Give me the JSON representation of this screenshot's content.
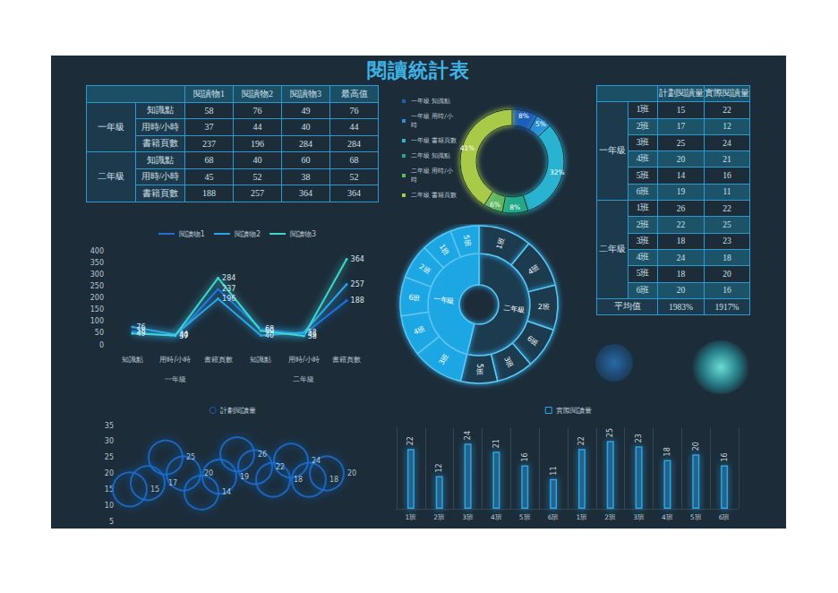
{
  "title": "閱讀統計表",
  "reading_table": {
    "header": [
      "閱讀物1",
      "閱讀物2",
      "閱讀物3",
      "最高值"
    ],
    "groups": [
      {
        "label": "一年級",
        "rows": [
          {
            "label": "知識點",
            "values": [
              58,
              76,
              49,
              76
            ]
          },
          {
            "label": "用時/小時",
            "values": [
              37,
              44,
              40,
              44
            ]
          },
          {
            "label": "書籍頁數",
            "values": [
              237,
              196,
              284,
              284
            ]
          }
        ]
      },
      {
        "label": "二年級",
        "rows": [
          {
            "label": "知識點",
            "values": [
              68,
              40,
              60,
              68
            ]
          },
          {
            "label": "用時/小時",
            "values": [
              45,
              52,
              38,
              52
            ]
          },
          {
            "label": "書籍頁數",
            "values": [
              188,
              257,
              364,
              364
            ]
          }
        ]
      }
    ]
  },
  "class_table": {
    "header": [
      "計劃閱讀量",
      "實際閱讀量"
    ],
    "groups": [
      {
        "label": "一年級",
        "rows": [
          {
            "label": "1班",
            "values": [
              15,
              22
            ]
          },
          {
            "label": "2班",
            "values": [
              17,
              12
            ]
          },
          {
            "label": "3班",
            "values": [
              25,
              24
            ]
          },
          {
            "label": "4班",
            "values": [
              20,
              21
            ]
          },
          {
            "label": "5班",
            "values": [
              14,
              16
            ]
          },
          {
            "label": "6班",
            "values": [
              19,
              11
            ]
          }
        ]
      },
      {
        "label": "二年級",
        "rows": [
          {
            "label": "1班",
            "values": [
              26,
              22
            ]
          },
          {
            "label": "2班",
            "values": [
              22,
              25
            ]
          },
          {
            "label": "3班",
            "values": [
              18,
              23
            ]
          },
          {
            "label": "4班",
            "values": [
              24,
              18
            ]
          },
          {
            "label": "5班",
            "values": [
              18,
              20
            ]
          },
          {
            "label": "6班",
            "values": [
              20,
              16
            ]
          }
        ]
      }
    ],
    "footer": {
      "label": "平均值",
      "values": [
        "1983%",
        "1917%"
      ]
    }
  },
  "chart_data": [
    {
      "type": "line",
      "categories": [
        "知識點",
        "用時/小時",
        "書籍頁數",
        "知識點",
        "用時/小時",
        "書籍頁數"
      ],
      "groups": [
        "一年級",
        "二年級"
      ],
      "series": [
        {
          "name": "閱讀物1",
          "color": "#1f6fd6",
          "values": [
            58,
            37,
            237,
            68,
            45,
            188
          ]
        },
        {
          "name": "閱讀物2",
          "color": "#2aa5e8",
          "values": [
            76,
            44,
            196,
            40,
            52,
            257
          ]
        },
        {
          "name": "閱讀物3",
          "color": "#3dd6d0",
          "values": [
            49,
            40,
            284,
            60,
            38,
            364
          ]
        }
      ],
      "ylim": [
        0,
        400
      ],
      "yticks": [
        0,
        50,
        100,
        150,
        200,
        250,
        300,
        350,
        400
      ],
      "grid": false,
      "data_labels": true,
      "legend": "top"
    },
    {
      "type": "pie",
      "categories": [
        "一年級 知識點",
        "一年級 用時/小時",
        "一年級 書籍頁數",
        "二年級 知識點",
        "二年級 用時/小時",
        "二年級 書籍頁數"
      ],
      "values": [
        8,
        5,
        32,
        8,
        6,
        41
      ],
      "value_labels": [
        "8%",
        "5%",
        "32%",
        "8%",
        "6%",
        "41%"
      ],
      "colors": [
        "#1f5fb8",
        "#2a8fd8",
        "#2bb3d0",
        "#23a98a",
        "#5fb865",
        "#a9c94a"
      ],
      "data_labels": true,
      "legend": "left"
    },
    {
      "type": "sunburst",
      "data": [
        {
          "name": "一年級",
          "children": [
            {
              "name": "1班",
              "value": 15
            },
            {
              "name": "2班",
              "value": 17
            },
            {
              "name": "3班",
              "value": 25
            },
            {
              "name": "4班",
              "value": 20
            },
            {
              "name": "5班",
              "value": 14
            },
            {
              "name": "6班",
              "value": 19
            }
          ]
        },
        {
          "name": "二年級",
          "children": [
            {
              "name": "1班",
              "value": 26
            },
            {
              "name": "2班",
              "value": 22
            },
            {
              "name": "3班",
              "value": 18
            },
            {
              "name": "4班",
              "value": 24
            },
            {
              "name": "5班",
              "value": 18
            },
            {
              "name": "6班",
              "value": 20
            }
          ]
        }
      ],
      "colors": [
        "#1ea7e4",
        "#1b3a4f"
      ]
    },
    {
      "type": "scatter",
      "categories": [
        null,
        null,
        null,
        null,
        null,
        null,
        null,
        null,
        null,
        null,
        null,
        null
      ],
      "series": [
        {
          "name": "計劃閱讀量",
          "color": "#1f6fd6",
          "values": [
            15,
            17,
            25,
            20,
            14,
            19,
            26,
            22,
            18,
            24,
            18,
            20
          ]
        }
      ],
      "ylim": [
        5,
        35
      ],
      "yticks": [
        5,
        10,
        15,
        20,
        25,
        30,
        35
      ],
      "marker": "circle",
      "data_labels": true,
      "tick_labels": "y",
      "grid": false,
      "legend": "top"
    },
    {
      "type": "bar",
      "categories": [
        "1班",
        "2班",
        "3班",
        "4班",
        "5班",
        "6班",
        "1班",
        "2班",
        "3班",
        "4班",
        "5班",
        "6班"
      ],
      "series": [
        {
          "name": "實際閱讀量",
          "color": "#2aa5e8",
          "values": [
            22,
            12,
            24,
            21,
            16,
            11,
            22,
            25,
            23,
            18,
            20,
            16
          ]
        }
      ],
      "ylim": [
        0,
        30
      ],
      "data_labels": true,
      "tick_labels": "x",
      "grid": true,
      "legend": "top"
    }
  ]
}
